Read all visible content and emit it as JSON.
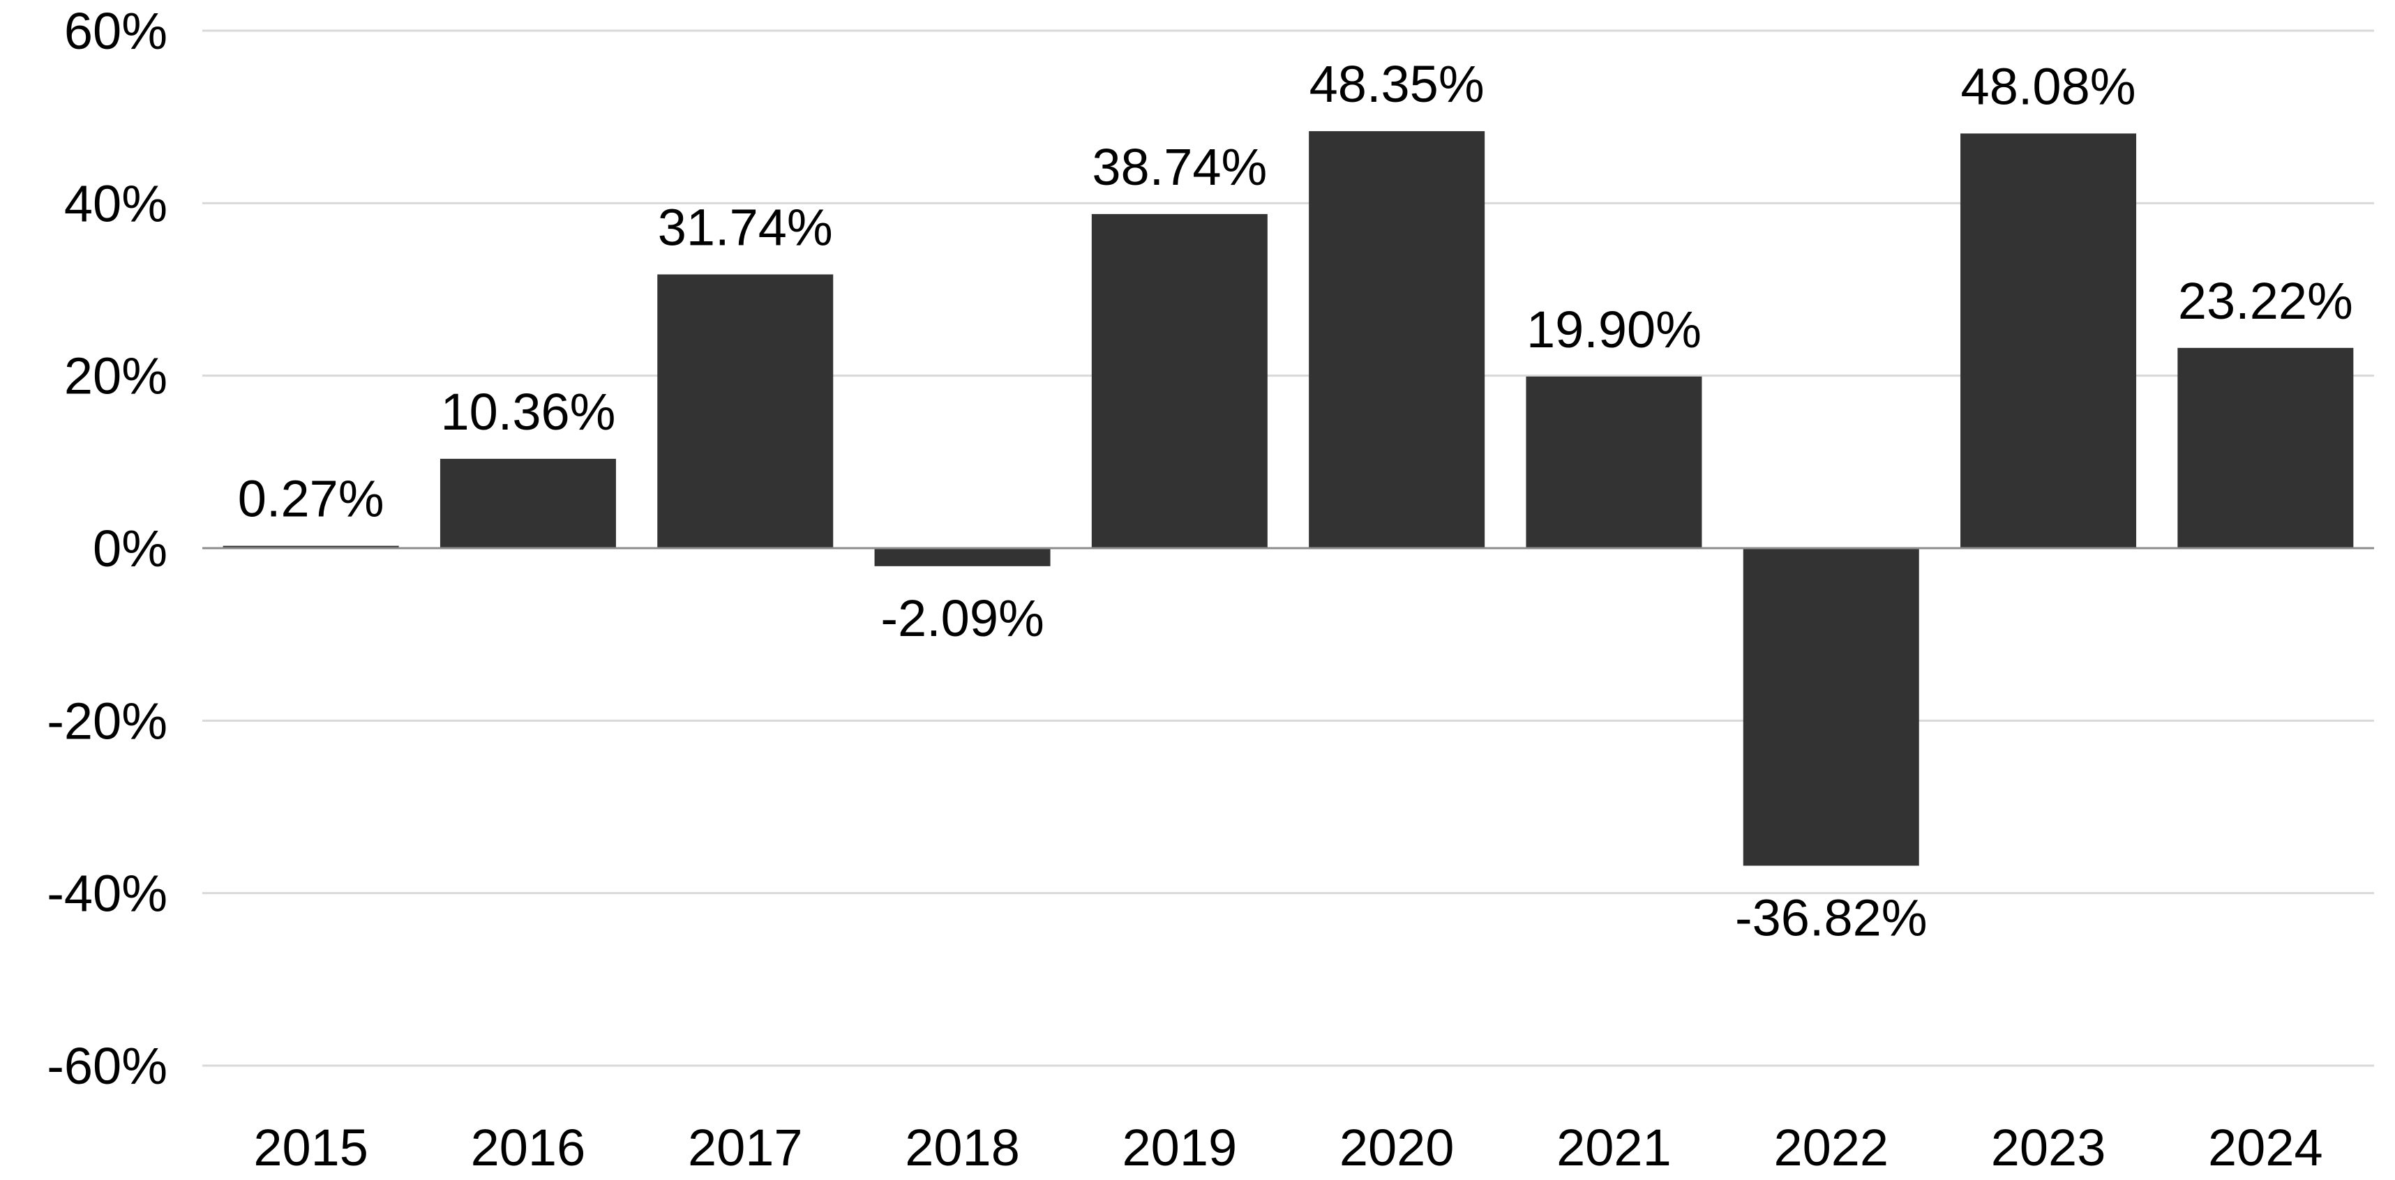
{
  "chart_data": {
    "type": "bar",
    "title": "",
    "xlabel": "",
    "ylabel": "",
    "categories": [
      "2015",
      "2016",
      "2017",
      "2018",
      "2019",
      "2020",
      "2021",
      "2022",
      "2023",
      "2024"
    ],
    "values": [
      0.27,
      10.36,
      31.74,
      -2.09,
      38.74,
      48.35,
      19.9,
      -36.82,
      48.08,
      23.22
    ],
    "data_labels": [
      "0.27%",
      "10.36%",
      "31.74%",
      "-2.09%",
      "38.74%",
      "48.35%",
      "19.90%",
      "-36.82%",
      "48.08%",
      "23.22%"
    ],
    "ylim": [
      -60,
      60
    ],
    "yticks": [
      60,
      40,
      20,
      0,
      -20,
      -40,
      -60
    ],
    "ytick_labels": [
      "60%",
      "40%",
      "20%",
      "0%",
      "-20%",
      "-40%",
      "-60%"
    ],
    "grid": true,
    "legend": "none",
    "colors": {
      "bar": "#333333",
      "grid": "#d9d9d9",
      "zero_line": "#8c8c8c",
      "text": "#000000"
    }
  }
}
